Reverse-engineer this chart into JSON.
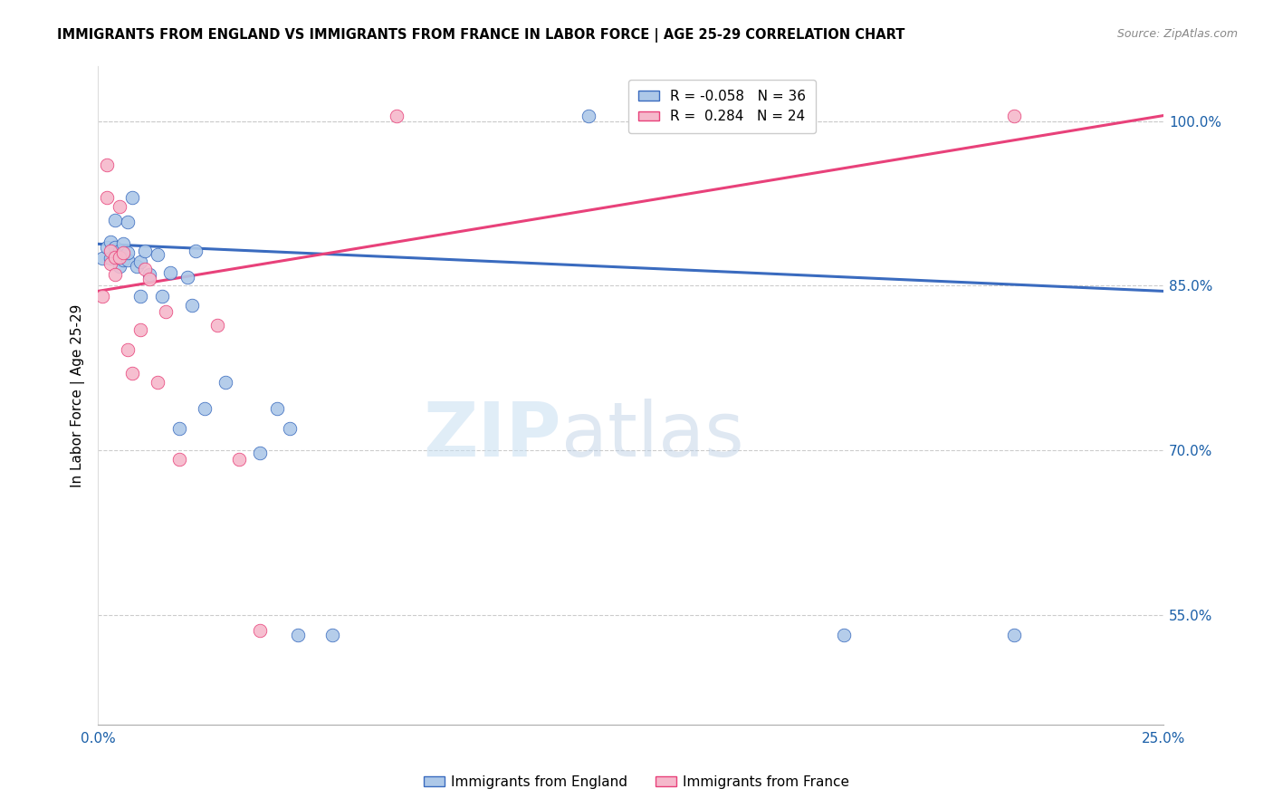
{
  "title": "IMMIGRANTS FROM ENGLAND VS IMMIGRANTS FROM FRANCE IN LABOR FORCE | AGE 25-29 CORRELATION CHART",
  "source": "Source: ZipAtlas.com",
  "ylabel": "In Labor Force | Age 25-29",
  "xlabel_england": "Immigrants from England",
  "xlabel_france": "Immigrants from France",
  "xmin": 0.0,
  "xmax": 0.25,
  "ymin": 0.45,
  "ymax": 1.05,
  "yticks": [
    0.55,
    0.7,
    0.85,
    1.0
  ],
  "ytick_labels": [
    "55.0%",
    "70.0%",
    "85.0%",
    "100.0%"
  ],
  "R_england": -0.058,
  "N_england": 36,
  "R_france": 0.284,
  "N_france": 24,
  "color_england": "#adc8e8",
  "color_france": "#f5b8cb",
  "line_color_england": "#3a6bbf",
  "line_color_france": "#e8417a",
  "england_line": [
    0.0,
    0.888,
    0.25,
    0.845
  ],
  "france_line": [
    0.0,
    0.845,
    0.25,
    1.005
  ],
  "england_x": [
    0.001,
    0.002,
    0.003,
    0.003,
    0.004,
    0.004,
    0.005,
    0.005,
    0.006,
    0.006,
    0.007,
    0.007,
    0.007,
    0.008,
    0.009,
    0.01,
    0.01,
    0.011,
    0.012,
    0.014,
    0.015,
    0.017,
    0.019,
    0.021,
    0.022,
    0.023,
    0.025,
    0.03,
    0.038,
    0.042,
    0.045,
    0.047,
    0.055,
    0.115,
    0.175,
    0.215
  ],
  "england_y": [
    0.875,
    0.885,
    0.89,
    0.875,
    0.91,
    0.885,
    0.868,
    0.882,
    0.888,
    0.873,
    0.873,
    0.88,
    0.908,
    0.93,
    0.868,
    0.872,
    0.84,
    0.882,
    0.86,
    0.878,
    0.84,
    0.862,
    0.72,
    0.858,
    0.832,
    0.882,
    0.738,
    0.762,
    0.698,
    0.738,
    0.72,
    0.532,
    0.532,
    1.005,
    0.532,
    0.532
  ],
  "france_x": [
    0.001,
    0.002,
    0.002,
    0.003,
    0.003,
    0.004,
    0.004,
    0.005,
    0.005,
    0.006,
    0.007,
    0.008,
    0.01,
    0.011,
    0.012,
    0.014,
    0.016,
    0.019,
    0.028,
    0.033,
    0.038,
    0.07,
    0.145,
    0.215
  ],
  "france_y": [
    0.84,
    0.96,
    0.93,
    0.882,
    0.87,
    0.86,
    0.876,
    0.922,
    0.876,
    0.88,
    0.792,
    0.77,
    0.81,
    0.865,
    0.856,
    0.762,
    0.826,
    0.692,
    0.814,
    0.692,
    0.536,
    1.005,
    1.005,
    1.005
  ],
  "watermark_zip": "ZIP",
  "watermark_atlas": "atlas",
  "marker_size": 110
}
